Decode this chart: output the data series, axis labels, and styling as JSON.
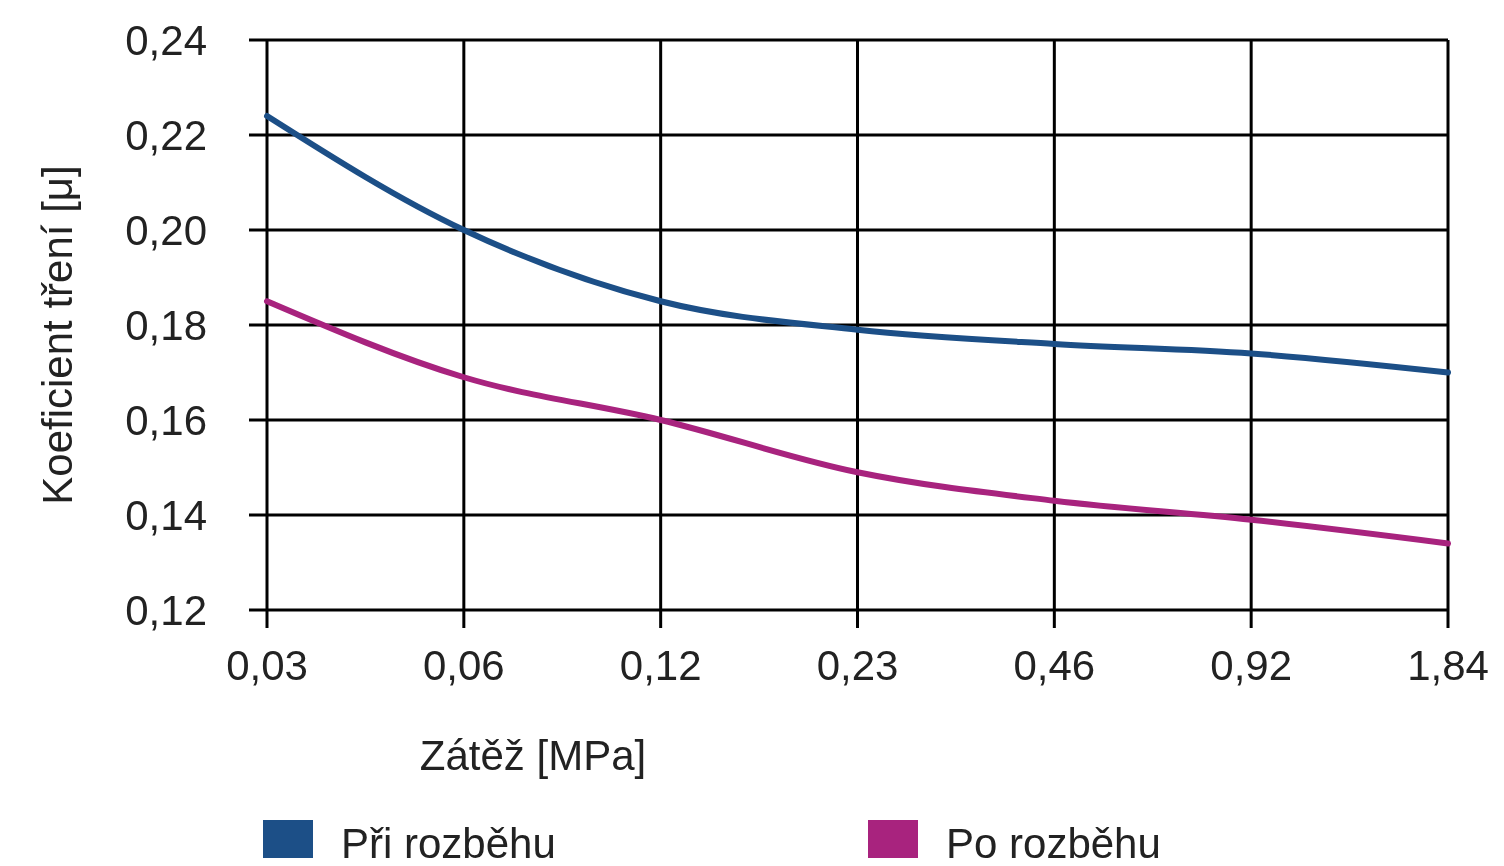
{
  "chart_data": {
    "type": "line",
    "xlabel": "Zátěž  [MPa]",
    "ylabel": "Koeficient tření  [μ]",
    "categories": [
      "0,03",
      "0,06",
      "0,12",
      "0,23",
      "0,46",
      "0,92",
      "1,84"
    ],
    "series": [
      {
        "name": "Při rozběhu",
        "color": "#1c4f87",
        "values": [
          0.224,
          0.2,
          0.185,
          0.179,
          0.176,
          0.174,
          0.17
        ]
      },
      {
        "name": "Po rozběhu",
        "color": "#a8237e",
        "values": [
          0.185,
          0.169,
          0.16,
          0.149,
          0.143,
          0.139,
          0.134
        ]
      }
    ],
    "ylim": [
      0.12,
      0.24
    ],
    "yticks": [
      {
        "value": 0.12,
        "label": "0,12"
      },
      {
        "value": 0.14,
        "label": "0,14"
      },
      {
        "value": 0.16,
        "label": "0,16"
      },
      {
        "value": 0.18,
        "label": "0,18"
      },
      {
        "value": 0.2,
        "label": "0,20"
      },
      {
        "value": 0.22,
        "label": "0,22"
      },
      {
        "value": 0.24,
        "label": "0,24"
      }
    ],
    "grid": true,
    "legend": "bottom",
    "marker": "none",
    "line_style": "solid"
  }
}
